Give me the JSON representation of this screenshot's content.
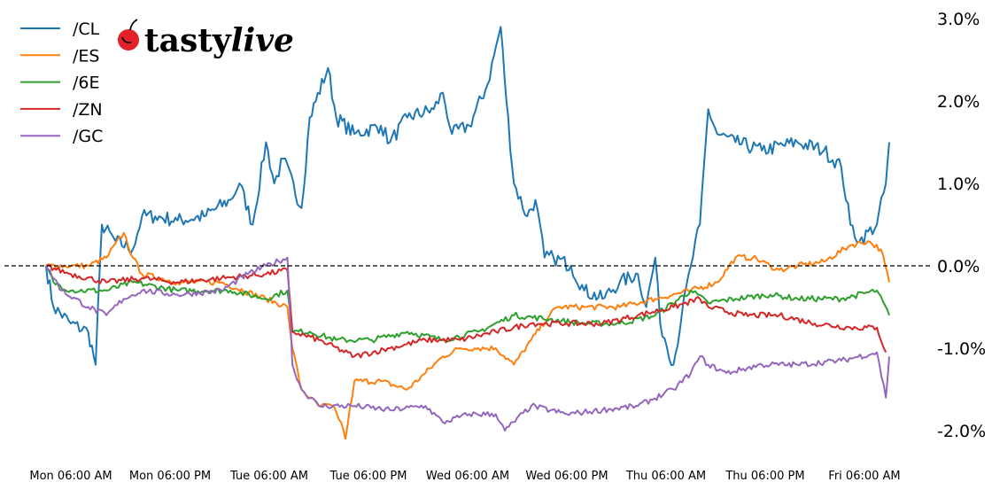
{
  "brand": {
    "name": "tastylive",
    "name_part1": "tasty",
    "name_part2": "live"
  },
  "chart_data": {
    "type": "line",
    "title": "",
    "xlabel": "",
    "ylabel": "",
    "x_units": "hours since Monday 00:00",
    "xlim": [
      3,
      105
    ],
    "ylim": [
      -2.15,
      3.05
    ],
    "y_format": "percent",
    "yticks": [
      3.0,
      2.0,
      1.0,
      0.0,
      -1.0,
      -2.0
    ],
    "ytick_labels": [
      "3.0%",
      "2.0%",
      "1.0%",
      "0.0%",
      "-1.0%",
      "-2.0%"
    ],
    "xticks": [
      6,
      18,
      30,
      42,
      54,
      66,
      78,
      90,
      102
    ],
    "xtick_labels": [
      "Mon 06:00 AM",
      "Mon 06:00 PM",
      "Tue 06:00 AM",
      "Tue 06:00 PM",
      "Wed 06:00 AM",
      "Wed 06:00 PM",
      "Thu 06:00 AM",
      "Thu 06:00 PM",
      "Fri 06:00 AM"
    ],
    "reference_line": {
      "y": 0.0,
      "style": "dashed"
    },
    "legend_placement": "top-left",
    "grid": false,
    "series": [
      {
        "name": "/CL",
        "color": "#1f77b4",
        "points": [
          [
            3,
            0
          ],
          [
            3.9,
            -0.5
          ],
          [
            6,
            -0.7
          ],
          [
            8.1,
            -0.8
          ],
          [
            9,
            -1.2
          ],
          [
            9.75,
            0.5
          ],
          [
            11.4,
            0.3
          ],
          [
            13.5,
            0.2
          ],
          [
            14.6,
            0.6
          ],
          [
            16.2,
            0.6
          ],
          [
            18.9,
            0.55
          ],
          [
            22.1,
            0.6
          ],
          [
            25.3,
            0.8
          ],
          [
            26.4,
            1.0
          ],
          [
            28,
            0.5
          ],
          [
            29.6,
            1.5
          ],
          [
            30.6,
            1.0
          ],
          [
            31.7,
            1.3
          ],
          [
            33.9,
            0.7
          ],
          [
            34.9,
            1.8
          ],
          [
            37.1,
            2.4
          ],
          [
            38.1,
            1.8
          ],
          [
            40.3,
            1.6
          ],
          [
            43.5,
            1.7
          ],
          [
            44.6,
            1.5
          ],
          [
            46.7,
            1.8
          ],
          [
            49.9,
            1.9
          ],
          [
            51,
            2.1
          ],
          [
            52.1,
            1.6
          ],
          [
            54.2,
            1.7
          ],
          [
            56.4,
            2.2
          ],
          [
            58,
            2.9
          ],
          [
            58.7,
            2.0
          ],
          [
            59.6,
            1.0
          ],
          [
            61.2,
            0.6
          ],
          [
            62.2,
            0.8
          ],
          [
            63.3,
            0.1
          ],
          [
            64.4,
            0.1
          ],
          [
            66.5,
            0.0
          ],
          [
            68.1,
            -0.3
          ],
          [
            70.3,
            -0.4
          ],
          [
            72.4,
            -0.2
          ],
          [
            74.6,
            -0.1
          ],
          [
            75.6,
            -0.5
          ],
          [
            76.7,
            0.1
          ],
          [
            77.3,
            -0.7
          ],
          [
            78.9,
            -1.2
          ],
          [
            79.9,
            -0.6
          ],
          [
            81,
            0.0
          ],
          [
            82.1,
            0.5
          ],
          [
            83.1,
            1.9
          ],
          [
            84.2,
            1.6
          ],
          [
            86.4,
            1.5
          ],
          [
            89.6,
            1.4
          ],
          [
            93.9,
            1.5
          ],
          [
            97.1,
            1.4
          ],
          [
            99.2,
            1.2
          ],
          [
            100.3,
            0.5
          ],
          [
            101.4,
            0.3
          ],
          [
            103.5,
            0.5
          ],
          [
            104.6,
            1.0
          ],
          [
            105,
            1.5
          ]
        ]
      },
      {
        "name": "/ES",
        "color": "#ff7f0e",
        "points": [
          [
            3,
            0
          ],
          [
            6,
            0
          ],
          [
            8.1,
            0
          ],
          [
            10.3,
            0.1
          ],
          [
            12.4,
            0.4
          ],
          [
            13.5,
            0.1
          ],
          [
            14.6,
            -0.1
          ],
          [
            18.9,
            -0.2
          ],
          [
            24.2,
            -0.2
          ],
          [
            29.6,
            -0.4
          ],
          [
            32.2,
            -0.5
          ],
          [
            32.8,
            -1.0
          ],
          [
            33.9,
            -1.5
          ],
          [
            34.9,
            -1.6
          ],
          [
            36,
            -1.7
          ],
          [
            37.6,
            -1.7
          ],
          [
            38.7,
            -1.9
          ],
          [
            39.2,
            -2.1
          ],
          [
            40.3,
            -1.4
          ],
          [
            43.5,
            -1.4
          ],
          [
            46.7,
            -1.5
          ],
          [
            48.9,
            -1.3
          ],
          [
            51,
            -1.1
          ],
          [
            53.1,
            -1.0
          ],
          [
            55.3,
            -1.0
          ],
          [
            57.4,
            -1.0
          ],
          [
            59.6,
            -1.2
          ],
          [
            61.7,
            -0.9
          ],
          [
            63.9,
            -0.6
          ],
          [
            64.9,
            -0.5
          ],
          [
            68.1,
            -0.5
          ],
          [
            72.4,
            -0.5
          ],
          [
            76.7,
            -0.4
          ],
          [
            81,
            -0.3
          ],
          [
            84.2,
            -0.2
          ],
          [
            86.4,
            0.1
          ],
          [
            88.5,
            0.1
          ],
          [
            90.6,
            0.0
          ],
          [
            91.7,
            -0.05
          ],
          [
            93.9,
            0.0
          ],
          [
            97.1,
            0.05
          ],
          [
            100.3,
            0.25
          ],
          [
            102.4,
            0.3
          ],
          [
            104,
            0.2
          ],
          [
            105,
            -0.2
          ]
        ]
      },
      {
        "name": "/6E",
        "color": "#2ca02c",
        "points": [
          [
            3,
            0
          ],
          [
            3.9,
            -0.2
          ],
          [
            6,
            -0.3
          ],
          [
            10.3,
            -0.3
          ],
          [
            13.5,
            -0.2
          ],
          [
            18.9,
            -0.3
          ],
          [
            25.3,
            -0.3
          ],
          [
            29.6,
            -0.4
          ],
          [
            32.2,
            -0.3
          ],
          [
            32.8,
            -0.8
          ],
          [
            34.9,
            -0.8
          ],
          [
            38.1,
            -0.9
          ],
          [
            42.4,
            -0.9
          ],
          [
            46.7,
            -0.8
          ],
          [
            51,
            -0.9
          ],
          [
            55.3,
            -0.8
          ],
          [
            59.6,
            -0.6
          ],
          [
            63.9,
            -0.65
          ],
          [
            68.1,
            -0.7
          ],
          [
            72.4,
            -0.7
          ],
          [
            76.7,
            -0.6
          ],
          [
            81,
            -0.3
          ],
          [
            83.1,
            -0.45
          ],
          [
            86.4,
            -0.4
          ],
          [
            90.6,
            -0.35
          ],
          [
            93.9,
            -0.4
          ],
          [
            99.2,
            -0.4
          ],
          [
            103.5,
            -0.3
          ],
          [
            105,
            -0.6
          ]
        ]
      },
      {
        "name": "/ZN",
        "color": "#d62728",
        "points": [
          [
            3,
            0
          ],
          [
            6,
            -0.1
          ],
          [
            10.3,
            -0.2
          ],
          [
            14.6,
            -0.15
          ],
          [
            18.9,
            -0.2
          ],
          [
            24.2,
            -0.15
          ],
          [
            29.6,
            -0.1
          ],
          [
            32.2,
            -0.05
          ],
          [
            32.8,
            -0.8
          ],
          [
            36,
            -0.9
          ],
          [
            40.3,
            -1.1
          ],
          [
            44.6,
            -1.0
          ],
          [
            48.9,
            -0.9
          ],
          [
            53.1,
            -0.9
          ],
          [
            57.4,
            -0.8
          ],
          [
            61.7,
            -0.7
          ],
          [
            66,
            -0.7
          ],
          [
            70.3,
            -0.7
          ],
          [
            74.6,
            -0.6
          ],
          [
            78.9,
            -0.5
          ],
          [
            82.1,
            -0.4
          ],
          [
            83.1,
            -0.5
          ],
          [
            87.4,
            -0.6
          ],
          [
            91.7,
            -0.6
          ],
          [
            96,
            -0.7
          ],
          [
            100.3,
            -0.75
          ],
          [
            103.5,
            -0.75
          ],
          [
            104.6,
            -1.05
          ]
        ]
      },
      {
        "name": "/GC",
        "color": "#9467bd",
        "points": [
          [
            3,
            0
          ],
          [
            4.9,
            -0.3
          ],
          [
            8.1,
            -0.5
          ],
          [
            10.3,
            -0.6
          ],
          [
            12.4,
            -0.4
          ],
          [
            14.6,
            -0.3
          ],
          [
            18.9,
            -0.35
          ],
          [
            24.2,
            -0.3
          ],
          [
            27.4,
            -0.1
          ],
          [
            29.6,
            0.0
          ],
          [
            32.2,
            0.1
          ],
          [
            32.8,
            -1.2
          ],
          [
            33.9,
            -1.5
          ],
          [
            36,
            -1.7
          ],
          [
            40.3,
            -1.7
          ],
          [
            44.6,
            -1.75
          ],
          [
            48.9,
            -1.7
          ],
          [
            51,
            -1.9
          ],
          [
            54.2,
            -1.8
          ],
          [
            57.4,
            -1.8
          ],
          [
            58.5,
            -2.0
          ],
          [
            61.7,
            -1.7
          ],
          [
            66,
            -1.8
          ],
          [
            70.3,
            -1.75
          ],
          [
            74.6,
            -1.7
          ],
          [
            78.9,
            -1.5
          ],
          [
            81,
            -1.3
          ],
          [
            82.1,
            -1.1
          ],
          [
            83.1,
            -1.2
          ],
          [
            85.3,
            -1.3
          ],
          [
            89.6,
            -1.2
          ],
          [
            93.9,
            -1.2
          ],
          [
            99.2,
            -1.15
          ],
          [
            103.5,
            -1.05
          ],
          [
            104.6,
            -1.6
          ],
          [
            105,
            -1.1
          ]
        ]
      }
    ]
  }
}
